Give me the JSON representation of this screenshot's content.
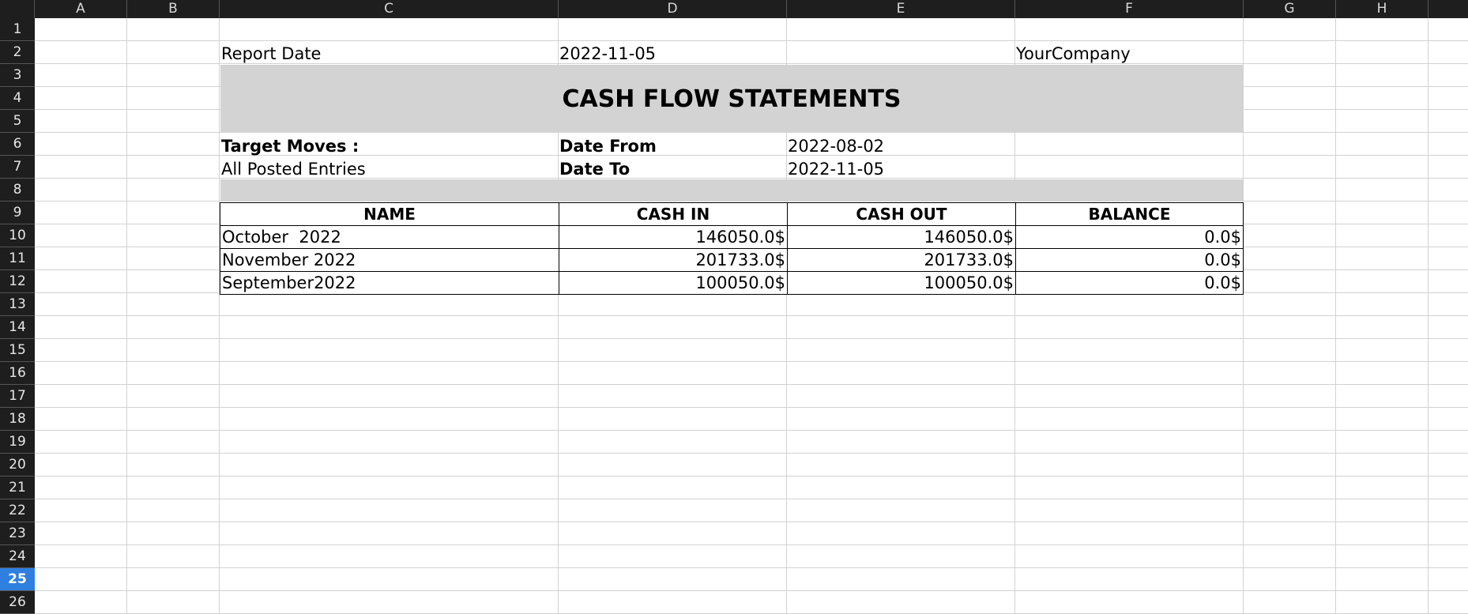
{
  "columns": [
    "A",
    "B",
    "C",
    "D",
    "E",
    "F",
    "G",
    "H"
  ],
  "rows": [
    "1",
    "2",
    "3",
    "4",
    "5",
    "6",
    "7",
    "8",
    "9",
    "10",
    "11",
    "12",
    "13",
    "14",
    "15",
    "16",
    "17",
    "18",
    "19",
    "20",
    "21",
    "22",
    "23",
    "24",
    "25",
    "26"
  ],
  "active_row": "25",
  "report": {
    "report_date_label": "Report Date",
    "report_date_value": "2022-11-05",
    "company": "YourCompany",
    "title": "CASH FLOW STATEMENTS",
    "target_moves_label": "Target Moves :",
    "target_moves_value": "All Posted Entries",
    "date_from_label": "Date From",
    "date_from_value": "2022-08-02",
    "date_to_label": "Date To",
    "date_to_value": "2022-11-05"
  },
  "table": {
    "headers": [
      "NAME",
      "CASH IN",
      "CASH OUT",
      "BALANCE"
    ],
    "rows": [
      [
        "October  2022",
        "146050.0$",
        "146050.0$",
        "0.0$"
      ],
      [
        "November 2022",
        "201733.0$",
        "201733.0$",
        "0.0$"
      ],
      [
        "September2022",
        "100050.0$",
        "100050.0$",
        "0.0$"
      ]
    ]
  },
  "colors": {
    "header_bg": "#1e1e1e",
    "active_row_bg": "#2f7fe0",
    "title_band": "#d3d3d3",
    "gridline": "#d2d2d2"
  }
}
